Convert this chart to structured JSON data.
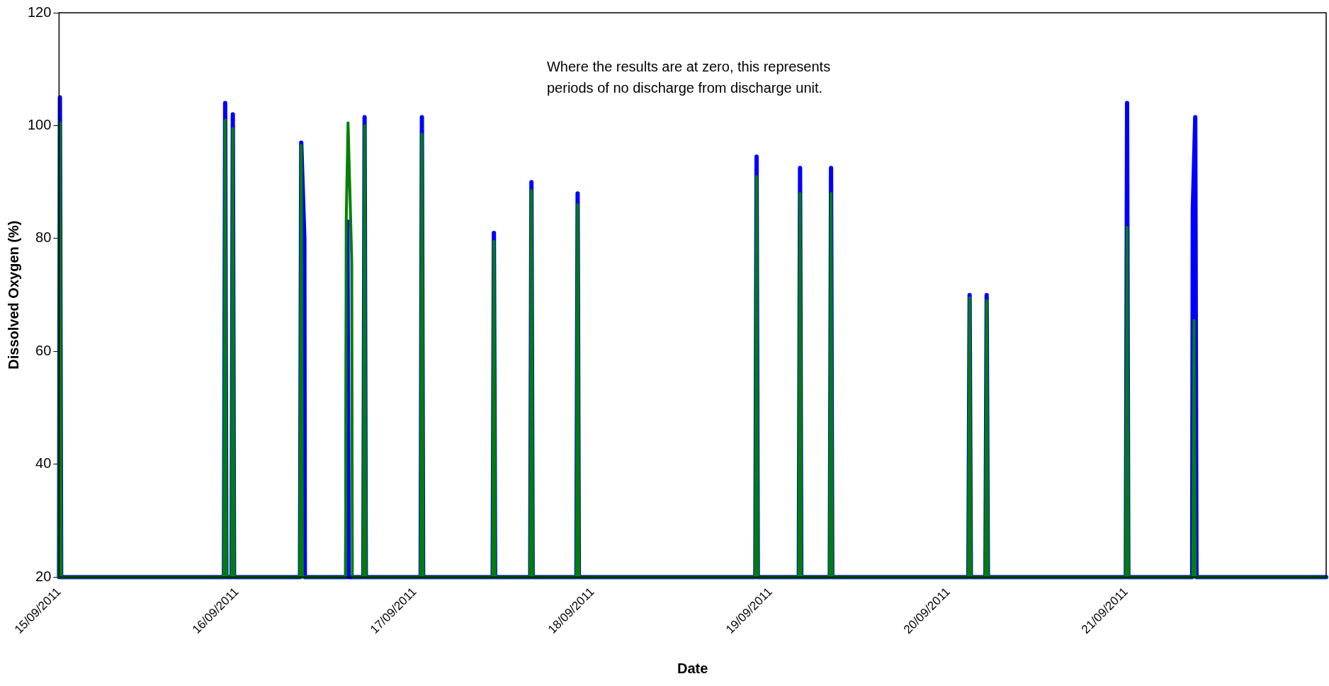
{
  "chart_data": {
    "type": "line",
    "xlabel": "Date",
    "ylabel": "Dissolved Oxygen (%)",
    "annotations": [
      "Where the results are at zero, this represents periods of no discharge from discharge unit."
    ],
    "xlim": [
      "2011-09-15T00:00",
      "2011-09-22T03:00"
    ],
    "xticks": [
      {
        "value": "2011-09-15",
        "label": "15/09/2011"
      },
      {
        "value": "2011-09-16",
        "label": "16/09/2011"
      },
      {
        "value": "2011-09-17",
        "label": "17/09/2011"
      },
      {
        "value": "2011-09-18",
        "label": "18/09/2011"
      },
      {
        "value": "2011-09-19",
        "label": "19/09/2011"
      },
      {
        "value": "2011-09-20",
        "label": "20/09/2011"
      },
      {
        "value": "2011-09-21",
        "label": "21/09/2011"
      }
    ],
    "ylim": [
      20,
      120
    ],
    "yticks": [
      20,
      40,
      60,
      80,
      100,
      120
    ],
    "grid": false,
    "legend": false,
    "marker": "none",
    "line_style": "solid",
    "series": [
      {
        "color": "#0000ff",
        "x": [
          "2011-09-15T00:00",
          "2011-09-15T00:07",
          "2011-09-15T00:17",
          "2011-09-15T22:15",
          "2011-09-15T22:25",
          "2011-09-15T22:35",
          "2011-09-15T23:17",
          "2011-09-15T23:27",
          "2011-09-15T23:37",
          "2011-09-16T08:31",
          "2011-09-16T08:41",
          "2011-09-16T09:06",
          "2011-09-16T09:10",
          "2011-09-16T14:45",
          "2011-09-16T14:55",
          "2011-09-16T15:05",
          "2011-09-16T17:04",
          "2011-09-16T17:14",
          "2011-09-16T17:24",
          "2011-09-17T00:48",
          "2011-09-17T00:58",
          "2011-09-17T01:08",
          "2011-09-17T10:31",
          "2011-09-17T10:41",
          "2011-09-17T10:51",
          "2011-09-17T15:35",
          "2011-09-17T15:45",
          "2011-09-17T15:55",
          "2011-09-17T21:49",
          "2011-09-17T21:59",
          "2011-09-17T22:09",
          "2011-09-18T21:58",
          "2011-09-18T22:08",
          "2011-09-18T22:18",
          "2011-09-19T03:50",
          "2011-09-19T04:00",
          "2011-09-19T04:10",
          "2011-09-19T08:01",
          "2011-09-19T08:11",
          "2011-09-19T08:21",
          "2011-09-20T02:43",
          "2011-09-20T02:53",
          "2011-09-20T03:03",
          "2011-09-20T05:01",
          "2011-09-20T05:11",
          "2011-09-20T05:21",
          "2011-09-20T23:58",
          "2011-09-21T00:08",
          "2011-09-21T00:18",
          "2011-09-21T08:55",
          "2011-09-21T09:00",
          "2011-09-21T09:20",
          "2011-09-21T09:30",
          "2011-09-22T03:00"
        ],
        "values": [
          20,
          105,
          20,
          20,
          104,
          20,
          20,
          102,
          20,
          20,
          97,
          80,
          20,
          20,
          83,
          20,
          20,
          101.5,
          20,
          20,
          101.5,
          20,
          20,
          81,
          20,
          20,
          90,
          20,
          20,
          88,
          20,
          20,
          94.5,
          20,
          20,
          92.5,
          20,
          20,
          92.5,
          20,
          20,
          70,
          20,
          20,
          70,
          20,
          20,
          104,
          20,
          20,
          85,
          101.5,
          20,
          20
        ]
      },
      {
        "color": "#008000",
        "x": [
          "2011-09-15T00:00",
          "2011-09-15T00:07",
          "2011-09-15T00:17",
          "2011-09-15T22:15",
          "2011-09-15T22:25",
          "2011-09-15T22:35",
          "2011-09-15T23:17",
          "2011-09-15T23:27",
          "2011-09-15T23:37",
          "2011-09-16T08:31",
          "2011-09-16T08:41",
          "2011-09-16T08:51",
          "2011-09-16T14:40",
          "2011-09-16T14:45",
          "2011-09-16T15:00",
          "2011-09-16T15:30",
          "2011-09-16T15:35",
          "2011-09-16T17:04",
          "2011-09-16T17:14",
          "2011-09-16T17:24",
          "2011-09-17T00:48",
          "2011-09-17T00:58",
          "2011-09-17T01:08",
          "2011-09-17T10:31",
          "2011-09-17T10:41",
          "2011-09-17T10:51",
          "2011-09-17T15:35",
          "2011-09-17T15:45",
          "2011-09-17T15:55",
          "2011-09-17T21:49",
          "2011-09-17T21:59",
          "2011-09-17T22:09",
          "2011-09-18T21:58",
          "2011-09-18T22:08",
          "2011-09-18T22:18",
          "2011-09-19T03:50",
          "2011-09-19T04:00",
          "2011-09-19T04:10",
          "2011-09-19T08:01",
          "2011-09-19T08:11",
          "2011-09-19T08:21",
          "2011-09-20T02:43",
          "2011-09-20T02:53",
          "2011-09-20T03:03",
          "2011-09-20T05:01",
          "2011-09-20T05:11",
          "2011-09-20T05:21",
          "2011-09-20T23:58",
          "2011-09-21T00:08",
          "2011-09-21T00:18",
          "2011-09-21T09:00",
          "2011-09-21T09:10",
          "2011-09-21T09:20",
          "2011-09-22T03:00"
        ],
        "values": [
          20,
          100.5,
          20,
          20,
          101,
          20,
          20,
          99.5,
          20,
          20,
          96.5,
          20,
          20,
          83,
          100.5,
          76,
          20,
          20,
          100,
          20,
          20,
          98.5,
          20,
          20,
          79.5,
          20,
          20,
          88.5,
          20,
          20,
          86,
          20,
          20,
          91,
          20,
          20,
          88,
          20,
          20,
          88,
          20,
          20,
          69.5,
          20,
          20,
          69,
          20,
          20,
          82,
          20,
          20,
          65.5,
          20,
          20
        ]
      }
    ]
  }
}
